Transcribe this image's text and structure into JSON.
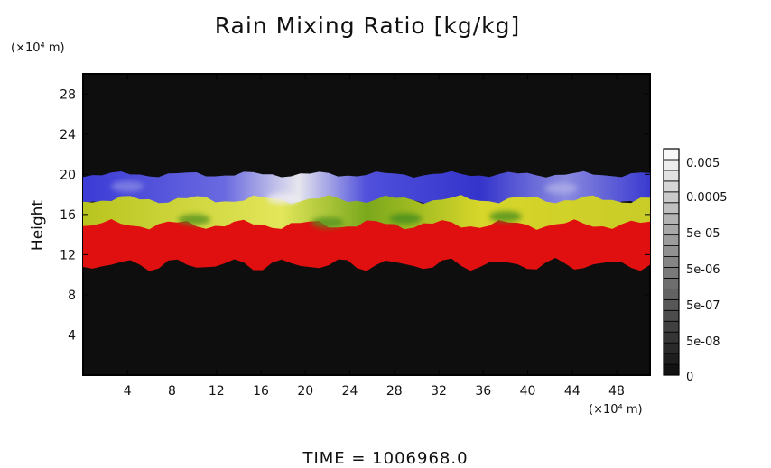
{
  "chart_data": {
    "type": "heatmap",
    "title": "Rain Mixing Ratio [kg/kg]",
    "ylabel": "Height",
    "y_unit": "(×10⁴ m)",
    "x_unit": "(×10⁴ m)",
    "xlim": [
      0,
      51
    ],
    "ylim": [
      0,
      30
    ],
    "x_ticks": [
      4,
      8,
      12,
      16,
      20,
      24,
      28,
      32,
      36,
      40,
      44,
      48
    ],
    "y_ticks": [
      4,
      8,
      12,
      16,
      20,
      24,
      28
    ],
    "colorbar_labels": [
      "0.005",
      "0.0005",
      "5e-05",
      "5e-06",
      "5e-07",
      "5e-08",
      "0"
    ],
    "bands": [
      {
        "layer": "red",
        "y_range": [
          11,
          15
        ],
        "color": "#e01010"
      },
      {
        "layer": "yellow-green",
        "y_range": [
          14,
          17.5
        ],
        "color": "#c8d21e"
      },
      {
        "layer": "blue",
        "y_range": [
          17,
          20
        ],
        "color": "#3d3dd8"
      }
    ],
    "background_color": "#0e0e0e"
  },
  "footer": {
    "time_text": "TIME  =  1006968.0"
  }
}
